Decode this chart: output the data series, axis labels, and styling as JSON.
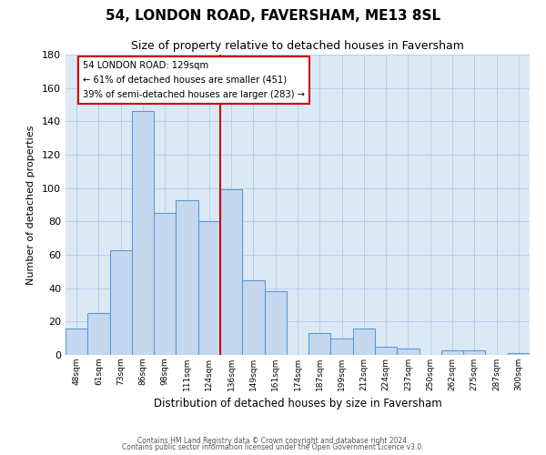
{
  "title": "54, LONDON ROAD, FAVERSHAM, ME13 8SL",
  "subtitle": "Size of property relative to detached houses in Faversham",
  "xlabel": "Distribution of detached houses by size in Faversham",
  "ylabel": "Number of detached properties",
  "bar_labels": [
    "48sqm",
    "61sqm",
    "73sqm",
    "86sqm",
    "98sqm",
    "111sqm",
    "124sqm",
    "136sqm",
    "149sqm",
    "161sqm",
    "174sqm",
    "187sqm",
    "199sqm",
    "212sqm",
    "224sqm",
    "237sqm",
    "250sqm",
    "262sqm",
    "275sqm",
    "287sqm",
    "300sqm"
  ],
  "bar_values": [
    16,
    25,
    63,
    146,
    85,
    93,
    80,
    99,
    45,
    38,
    0,
    13,
    10,
    16,
    5,
    4,
    0,
    3,
    3,
    0,
    1
  ],
  "bar_color": "#c5d8f0",
  "bar_edge_color": "#5b9bd5",
  "ylim": [
    0,
    180
  ],
  "yticks": [
    0,
    20,
    40,
    60,
    80,
    100,
    120,
    140,
    160,
    180
  ],
  "property_line_color": "#cc0000",
  "annotation_title": "54 LONDON ROAD: 129sqm",
  "annotation_line1": "← 61% of detached houses are smaller (451)",
  "annotation_line2": "39% of semi-detached houses are larger (283) →",
  "annotation_box_color": "#ffffff",
  "annotation_box_edge": "#cc0000",
  "footer1": "Contains HM Land Registry data © Crown copyright and database right 2024.",
  "footer2": "Contains public sector information licensed under the Open Government Licence v3.0.",
  "background_color": "#ffffff",
  "plot_bg_color": "#dce9f5",
  "grid_color": "#b8cfe8"
}
